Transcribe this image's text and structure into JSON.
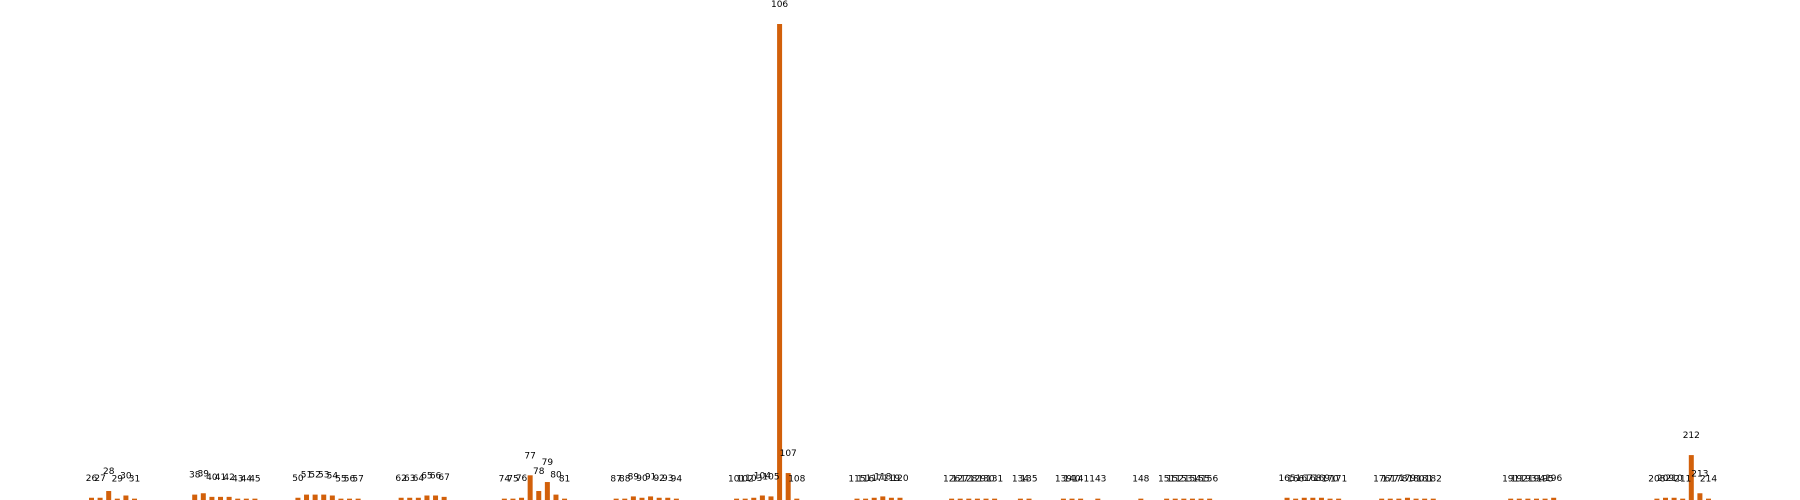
{
  "chart_data": {
    "type": "bar",
    "title": "",
    "xlabel": "",
    "ylabel": "",
    "ylim": [
      0,
      106
    ],
    "grid": false,
    "legend": "none",
    "bar_color": "#d2600a",
    "x": [
      26,
      27,
      28,
      29,
      30,
      31,
      38,
      39,
      40,
      41,
      42,
      43,
      44,
      45,
      50,
      51,
      52,
      53,
      54,
      55,
      56,
      57,
      62,
      63,
      64,
      65,
      66,
      67,
      74,
      75,
      76,
      77,
      78,
      79,
      80,
      81,
      87,
      88,
      89,
      90,
      91,
      92,
      93,
      94,
      101,
      102,
      103,
      104,
      105,
      106,
      107,
      108,
      115,
      116,
      117,
      118,
      119,
      120,
      126,
      127,
      128,
      129,
      130,
      131,
      134,
      135,
      139,
      140,
      141,
      143,
      148,
      151,
      152,
      153,
      154,
      155,
      156,
      165,
      166,
      167,
      168,
      169,
      170,
      171,
      176,
      177,
      178,
      179,
      180,
      181,
      182,
      191,
      192,
      193,
      194,
      195,
      196,
      208,
      209,
      210,
      211,
      212,
      213,
      214
    ],
    "values": [
      0.5,
      0.5,
      2,
      0.3,
      1,
      0.3,
      1.2,
      1.5,
      0.7,
      0.7,
      0.7,
      0.3,
      0.3,
      0.3,
      0.5,
      1.2,
      1.2,
      1.2,
      1,
      0.3,
      0.3,
      0.3,
      0.5,
      0.5,
      0.5,
      1,
      1,
      0.7,
      0.3,
      0.3,
      0.5,
      5.5,
      2,
      4,
      1.2,
      0.3,
      0.3,
      0.3,
      0.8,
      0.5,
      0.8,
      0.5,
      0.5,
      0.3,
      0.3,
      0.3,
      0.5,
      1,
      0.8,
      106,
      6,
      0.3,
      0.3,
      0.3,
      0.5,
      0.8,
      0.5,
      0.5,
      0.3,
      0.3,
      0.3,
      0.3,
      0.3,
      0.3,
      0.3,
      0.3,
      0.3,
      0.3,
      0.3,
      0.3,
      0.3,
      0.3,
      0.3,
      0.3,
      0.3,
      0.3,
      0.3,
      0.5,
      0.3,
      0.5,
      0.5,
      0.5,
      0.3,
      0.3,
      0.3,
      0.3,
      0.3,
      0.5,
      0.3,
      0.3,
      0.3,
      0.3,
      0.3,
      0.3,
      0.3,
      0.3,
      0.5,
      0.3,
      0.5,
      0.5,
      0.3,
      10,
      1.5,
      0.3
    ],
    "data_labels": [
      "26",
      "27",
      "28",
      "29",
      "30",
      "31",
      "38",
      "39",
      "40",
      "41",
      "42",
      "43",
      "44",
      "45",
      "50",
      "51",
      "52",
      "53",
      "54",
      "55",
      "56",
      "57",
      "62",
      "63",
      "64",
      "65",
      "66",
      "67",
      "74",
      "75",
      "76",
      "77",
      "78",
      "79",
      "80",
      "81",
      "87",
      "88",
      "89",
      "90",
      "91",
      "92",
      "93",
      "94",
      "101",
      "102",
      "103",
      "104",
      "105",
      "106",
      "107",
      "108",
      "115",
      "116",
      "117",
      "118",
      "119",
      "120",
      "126",
      "127",
      "128",
      "129",
      "130",
      "131",
      "134",
      "135",
      "139",
      "140",
      "141",
      "143",
      "148",
      "151",
      "152",
      "153",
      "154",
      "155",
      "156",
      "165",
      "166",
      "167",
      "168",
      "169",
      "170",
      "171",
      "176",
      "177",
      "178",
      "179",
      "180",
      "181",
      "182",
      "191",
      "192",
      "193",
      "194",
      "195",
      "196",
      "208",
      "209",
      "210",
      "211",
      "212",
      "213",
      "214"
    ]
  }
}
